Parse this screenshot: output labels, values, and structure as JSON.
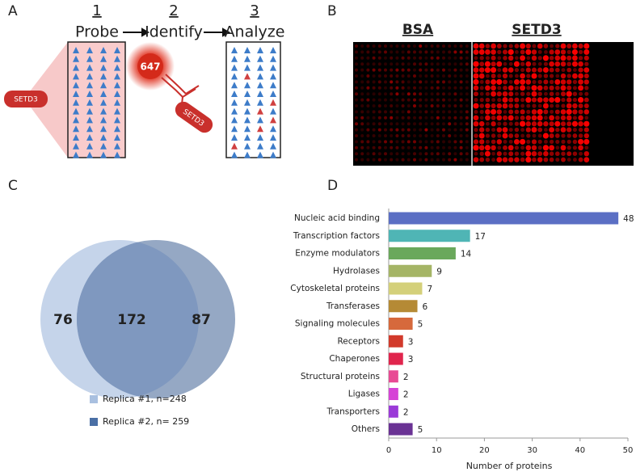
{
  "panels": {
    "labels": [
      "A",
      "B",
      "C",
      "D"
    ],
    "a": {
      "steps": [
        {
          "number": "1",
          "label": "Probe"
        },
        {
          "number": "2",
          "label": "Identify"
        },
        {
          "number": "3",
          "label": "Analyze"
        }
      ],
      "bait": "SETD3",
      "fluor": "647",
      "antibody_target": "SETD3"
    },
    "b": {
      "columns": [
        "BSA",
        "SETD3"
      ]
    }
  },
  "chart_data": [
    {
      "type": "venn",
      "sets": [
        {
          "name": "Replica #1, n=248",
          "color": "#a9c0e0"
        },
        {
          "name": "Replica #2, n= 259",
          "color": "#4a6fa5"
        }
      ],
      "values": [
        76,
        172,
        87
      ]
    },
    {
      "type": "bar",
      "orientation": "horizontal",
      "xlabel": "Number of proteins",
      "categories": [
        "Nucleic acid binding",
        "Transcription factors",
        "Enzyme modulators",
        "Hydrolases",
        "Cytoskeletal proteins",
        "Transferases",
        "Signaling molecules",
        "Receptors",
        "Chaperones",
        "Structural proteins",
        "Ligases",
        "Transporters",
        "Others"
      ],
      "values": [
        48,
        17,
        14,
        9,
        7,
        6,
        5,
        3,
        3,
        2,
        2,
        2,
        5
      ],
      "colors": [
        "#5b6fc4",
        "#4fb5b5",
        "#6aa85c",
        "#a5b566",
        "#d4d07a",
        "#b58a35",
        "#d6693c",
        "#d23a2b",
        "#e0254d",
        "#e84b94",
        "#d644d6",
        "#9b3ad8",
        "#6a3294"
      ],
      "xlim": [
        0,
        50
      ],
      "xticks": [
        0,
        10,
        20,
        30,
        40,
        50
      ]
    }
  ]
}
